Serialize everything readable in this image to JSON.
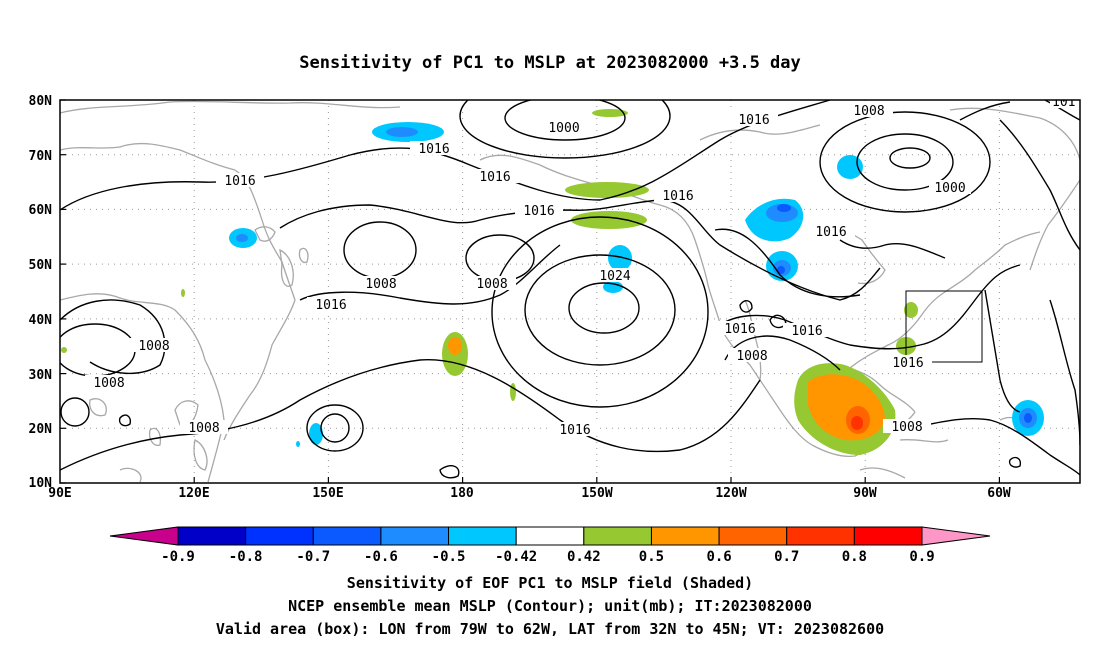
{
  "title": "Sensitivity of PC1 to MSLP at 2023082000 +3.5 day",
  "lat_labels": [
    "80N",
    "70N",
    "60N",
    "50N",
    "40N",
    "30N",
    "20N",
    "10N"
  ],
  "lon_labels": [
    "90E",
    "120E",
    "150E",
    "180",
    "150W",
    "120W",
    "90W",
    "60W"
  ],
  "contour_labels": {
    "c1000a": "1000",
    "c1000b": "1000",
    "c1008a": "1008",
    "c1008b": "1008",
    "c1008c": "1008",
    "c1008d": "1008",
    "c1008e": "1008",
    "c1008f": "1008",
    "c1008g": "1008",
    "c1008h": "1008",
    "c1016a": "1016",
    "c1016b": "1016",
    "c1016c": "1016",
    "c1016d": "1016",
    "c1016e": "1016",
    "c1016f": "1016",
    "c1016g": "1016",
    "c1016h": "1016",
    "c1016i": "1016",
    "c1016j": "1016",
    "c1016k": "1016",
    "c1016l": "1016",
    "c1024": "1024",
    "c101x": "101"
  },
  "colorbar": {
    "labels": [
      "-0.9",
      "-0.8",
      "-0.7",
      "-0.6",
      "-0.5",
      "-0.42",
      "0.42",
      "0.5",
      "0.6",
      "0.7",
      "0.8",
      "0.9"
    ],
    "colors": [
      "#c8008c",
      "#0000c8",
      "#0032ff",
      "#0a5aff",
      "#1e8cff",
      "#00c8ff",
      "#ffffff",
      "#96c832",
      "#ff9600",
      "#ff6400",
      "#ff3200",
      "#ff0000",
      "#ff96c8"
    ]
  },
  "footer": {
    "line1": "Sensitivity of EOF PC1 to MSLP field (Shaded)",
    "line2": "NCEP ensemble mean MSLP (Contour); unit(mb); IT:2023082000",
    "line3": "Valid area (box): LON from 79W to 62W, LAT from 32N to 45N; VT: 2023082600"
  }
}
